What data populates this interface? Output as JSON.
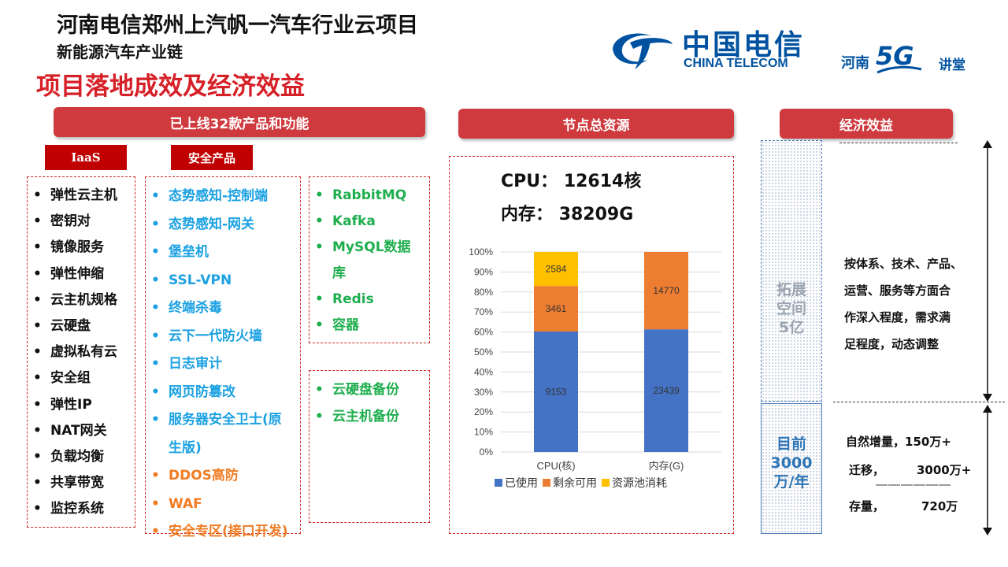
{
  "header": {
    "title_line1": "河南电信郑州上汽帆一汽车行业云项目",
    "title_line2": "新能源汽车产业链",
    "title_line3": "项目落地成效及经济效益",
    "logo_cn": "中国电信",
    "logo_en": "CHINA TELECOM",
    "logo2_left": "河南",
    "logo2_5g": "5G",
    "logo2_right": "讲堂"
  },
  "sections": {
    "products": "已上线32款产品和功能",
    "resources": "节点总资源",
    "economics": "经济效益"
  },
  "iaas": {
    "tag": "IaaS",
    "items": [
      "弹性云主机",
      "密钥对",
      "镜像服务",
      "弹性伸缩",
      "云主机规格",
      "云硬盘",
      "虚拟私有云",
      "安全组",
      "弹性IP",
      "NAT网关",
      "负载均衡",
      "共享带宽",
      "监控系统"
    ]
  },
  "security": {
    "tag": "安全产品",
    "items": [
      "态势感知-控制端",
      "态势感知-网关",
      "堡垒机",
      "SSL-VPN",
      "终端杀毒",
      "云下一代防火墙",
      "日志审计",
      "网页防篡改",
      "服务器安全卫士(原",
      "生版)",
      "DDOS高防",
      "WAF",
      "安全专区(接口开发)"
    ]
  },
  "middleware": {
    "items": [
      "RabbitMQ",
      "Kafka",
      "MySQL数据",
      "库",
      "Redis",
      "容器"
    ]
  },
  "backup": {
    "items": [
      "云硬盘备份",
      "云主机备份"
    ]
  },
  "resources": {
    "cpu_label": "CPU：",
    "cpu_value": "12614核",
    "mem_label": "内存：",
    "mem_value": "38209G"
  },
  "chart_data": {
    "type": "bar",
    "stacked": "percent",
    "categories": [
      "CPU(核)",
      "内存(G)"
    ],
    "series": [
      {
        "name": "已使用",
        "values": [
          9153,
          23439
        ],
        "color": "#4472c4"
      },
      {
        "name": "剩余可用",
        "values": [
          3461,
          14770
        ],
        "color": "#ed7d31"
      },
      {
        "name": "资源池消耗",
        "values": [
          2584,
          null
        ],
        "color": "#ffc000"
      }
    ],
    "y_ticks": [
      "0%",
      "10%",
      "20%",
      "30%",
      "40%",
      "50%",
      "60%",
      "70%",
      "80%",
      "90%",
      "100%"
    ],
    "ylim": [
      0,
      100
    ],
    "grid": true,
    "legend": "bottom"
  },
  "economics": {
    "expand_label": "拓展空间5亿",
    "expand_lines": [
      "拓展",
      "空间",
      "5亿"
    ],
    "expand_desc": [
      "按体系、技术、产品、",
      "运营、服务等方面合",
      "作深入程度，需求满",
      "足程度，动态调整"
    ],
    "current_lines": [
      "目前",
      "3000",
      "万/年"
    ],
    "rows": [
      {
        "label": "自然增量，",
        "value": "150万+"
      },
      {
        "label": "迁移，",
        "value": "3000万+"
      },
      {
        "label": "存量，",
        "value": "720万"
      }
    ],
    "row_separator": "――――――",
    "colors": {
      "expand": "#9aa5b1",
      "current": "#2e75b6"
    }
  }
}
